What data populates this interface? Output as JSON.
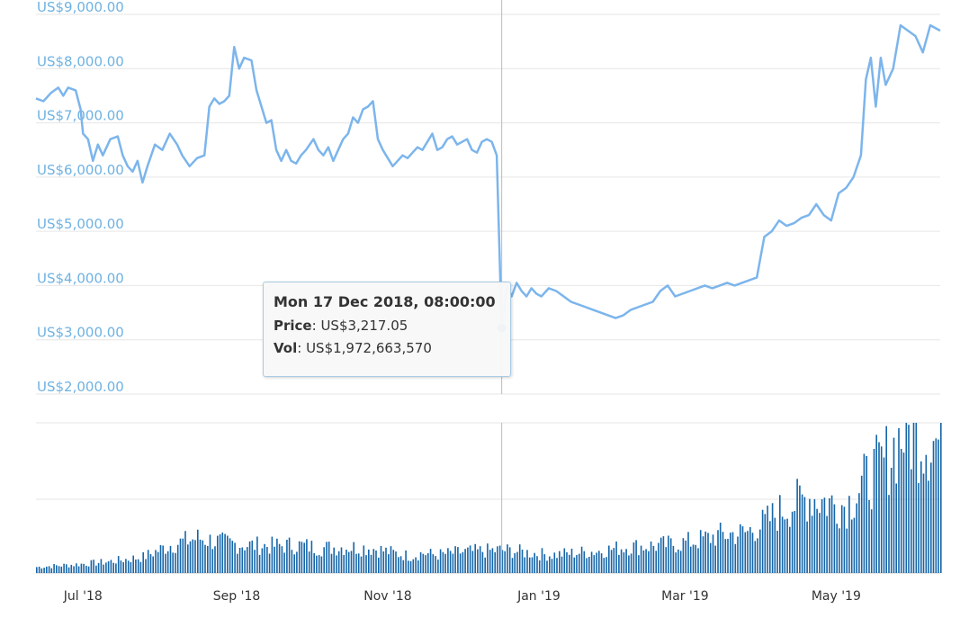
{
  "colors": {
    "line": "#7cb5ec",
    "volume": "#1565a8",
    "axis_label": "#6fb2e2",
    "grid": "#e6e6e6",
    "crosshair": "#bbbbbb"
  },
  "tooltip": {
    "date": "Mon 17 Dec 2018, 08:00:00",
    "price_label": "Price",
    "price_value": "US$3,217.05",
    "vol_label": "Vol",
    "vol_value": "US$1,972,663,570"
  },
  "chart_data": {
    "type": "line",
    "title": "",
    "y_tick_labels": [
      "US$9,000.00",
      "US$8,000.00",
      "US$7,000.00",
      "US$6,000.00",
      "US$5,000.00",
      "US$4,000.00",
      "US$3,000.00",
      "US$2,000.00"
    ],
    "y_ticks": [
      9000,
      8000,
      7000,
      6000,
      5000,
      4000,
      3000,
      2000
    ],
    "ylim": [
      2000,
      9000
    ],
    "x_tick_labels": [
      "Jul '18",
      "Sep '18",
      "Nov '18",
      "Jan '19",
      "Mar '19",
      "May '19"
    ],
    "x_tick_dates": [
      "2018-07-01",
      "2018-09-01",
      "2018-11-01",
      "2019-01-01",
      "2019-03-01",
      "2019-05-01"
    ],
    "xlim": [
      "2018-06-12",
      "2019-06-12"
    ],
    "grid": true,
    "highlight": {
      "date": "2018-12-17",
      "price": 3217.05,
      "volume": 1972663570
    },
    "price_series": {
      "name": "Price",
      "points": [
        [
          "2018-06-12",
          7450
        ],
        [
          "2018-06-15",
          7400
        ],
        [
          "2018-06-18",
          7550
        ],
        [
          "2018-06-21",
          7650
        ],
        [
          "2018-06-23",
          7500
        ],
        [
          "2018-06-25",
          7650
        ],
        [
          "2018-06-28",
          7600
        ],
        [
          "2018-06-30",
          7250
        ],
        [
          "2018-07-01",
          6800
        ],
        [
          "2018-07-03",
          6700
        ],
        [
          "2018-07-05",
          6300
        ],
        [
          "2018-07-07",
          6600
        ],
        [
          "2018-07-09",
          6400
        ],
        [
          "2018-07-12",
          6700
        ],
        [
          "2018-07-15",
          6750
        ],
        [
          "2018-07-17",
          6400
        ],
        [
          "2018-07-19",
          6200
        ],
        [
          "2018-07-21",
          6100
        ],
        [
          "2018-07-23",
          6300
        ],
        [
          "2018-07-25",
          5900
        ],
        [
          "2018-07-27",
          6200
        ],
        [
          "2018-07-30",
          6600
        ],
        [
          "2018-08-02",
          6500
        ],
        [
          "2018-08-05",
          6800
        ],
        [
          "2018-08-08",
          6600
        ],
        [
          "2018-08-10",
          6400
        ],
        [
          "2018-08-13",
          6200
        ],
        [
          "2018-08-16",
          6350
        ],
        [
          "2018-08-19",
          6400
        ],
        [
          "2018-08-21",
          7300
        ],
        [
          "2018-08-23",
          7450
        ],
        [
          "2018-08-25",
          7350
        ],
        [
          "2018-08-27",
          7400
        ],
        [
          "2018-08-29",
          7500
        ],
        [
          "2018-08-31",
          8400
        ],
        [
          "2018-09-02",
          8000
        ],
        [
          "2018-09-04",
          8200
        ],
        [
          "2018-09-07",
          8150
        ],
        [
          "2018-09-09",
          7600
        ],
        [
          "2018-09-11",
          7300
        ],
        [
          "2018-09-13",
          7000
        ],
        [
          "2018-09-15",
          7050
        ],
        [
          "2018-09-17",
          6500
        ],
        [
          "2018-09-19",
          6300
        ],
        [
          "2018-09-21",
          6500
        ],
        [
          "2018-09-23",
          6300
        ],
        [
          "2018-09-25",
          6250
        ],
        [
          "2018-09-27",
          6400
        ],
        [
          "2018-09-29",
          6500
        ],
        [
          "2018-10-02",
          6700
        ],
        [
          "2018-10-04",
          6500
        ],
        [
          "2018-10-06",
          6400
        ],
        [
          "2018-10-08",
          6550
        ],
        [
          "2018-10-10",
          6300
        ],
        [
          "2018-10-12",
          6500
        ],
        [
          "2018-10-14",
          6700
        ],
        [
          "2018-10-16",
          6800
        ],
        [
          "2018-10-18",
          7100
        ],
        [
          "2018-10-20",
          7000
        ],
        [
          "2018-10-22",
          7250
        ],
        [
          "2018-10-24",
          7300
        ],
        [
          "2018-10-26",
          7400
        ],
        [
          "2018-10-28",
          6700
        ],
        [
          "2018-10-30",
          6500
        ],
        [
          "2018-11-01",
          6350
        ],
        [
          "2018-11-03",
          6200
        ],
        [
          "2018-11-05",
          6300
        ],
        [
          "2018-11-07",
          6400
        ],
        [
          "2018-11-09",
          6350
        ],
        [
          "2018-11-11",
          6450
        ],
        [
          "2018-11-13",
          6550
        ],
        [
          "2018-11-15",
          6500
        ],
        [
          "2018-11-17",
          6650
        ],
        [
          "2018-11-19",
          6800
        ],
        [
          "2018-11-21",
          6500
        ],
        [
          "2018-11-23",
          6550
        ],
        [
          "2018-11-25",
          6700
        ],
        [
          "2018-11-27",
          6750
        ],
        [
          "2018-11-29",
          6600
        ],
        [
          "2018-12-01",
          6650
        ],
        [
          "2018-12-03",
          6700
        ],
        [
          "2018-12-05",
          6500
        ],
        [
          "2018-12-07",
          6450
        ],
        [
          "2018-12-09",
          6650
        ],
        [
          "2018-12-11",
          6700
        ],
        [
          "2018-12-13",
          6650
        ],
        [
          "2018-12-15",
          6400
        ],
        [
          "2018-12-17",
          3217.05
        ],
        [
          "2018-12-19",
          4000
        ],
        [
          "2018-12-21",
          3800
        ],
        [
          "2018-12-23",
          4050
        ],
        [
          "2018-12-25",
          3900
        ],
        [
          "2018-12-27",
          3800
        ],
        [
          "2018-12-29",
          3950
        ],
        [
          "2018-12-31",
          3850
        ],
        [
          "2019-01-02",
          3800
        ],
        [
          "2019-01-05",
          3950
        ],
        [
          "2019-01-08",
          3900
        ],
        [
          "2019-01-11",
          3800
        ],
        [
          "2019-01-14",
          3700
        ],
        [
          "2019-01-17",
          3650
        ],
        [
          "2019-01-20",
          3600
        ],
        [
          "2019-01-23",
          3550
        ],
        [
          "2019-01-26",
          3500
        ],
        [
          "2019-01-29",
          3450
        ],
        [
          "2019-02-01",
          3400
        ],
        [
          "2019-02-04",
          3450
        ],
        [
          "2019-02-07",
          3550
        ],
        [
          "2019-02-10",
          3600
        ],
        [
          "2019-02-13",
          3650
        ],
        [
          "2019-02-16",
          3700
        ],
        [
          "2019-02-19",
          3900
        ],
        [
          "2019-02-22",
          4000
        ],
        [
          "2019-02-25",
          3800
        ],
        [
          "2019-02-28",
          3850
        ],
        [
          "2019-03-03",
          3900
        ],
        [
          "2019-03-06",
          3950
        ],
        [
          "2019-03-09",
          4000
        ],
        [
          "2019-03-12",
          3950
        ],
        [
          "2019-03-15",
          4000
        ],
        [
          "2019-03-18",
          4050
        ],
        [
          "2019-03-21",
          4000
        ],
        [
          "2019-03-24",
          4050
        ],
        [
          "2019-03-27",
          4100
        ],
        [
          "2019-03-30",
          4150
        ],
        [
          "2019-04-02",
          4900
        ],
        [
          "2019-04-05",
          5000
        ],
        [
          "2019-04-08",
          5200
        ],
        [
          "2019-04-11",
          5100
        ],
        [
          "2019-04-14",
          5150
        ],
        [
          "2019-04-17",
          5250
        ],
        [
          "2019-04-20",
          5300
        ],
        [
          "2019-04-23",
          5500
        ],
        [
          "2019-04-26",
          5300
        ],
        [
          "2019-04-29",
          5200
        ],
        [
          "2019-05-02",
          5700
        ],
        [
          "2019-05-05",
          5800
        ],
        [
          "2019-05-08",
          6000
        ],
        [
          "2019-05-11",
          6400
        ],
        [
          "2019-05-13",
          7800
        ],
        [
          "2019-05-15",
          8200
        ],
        [
          "2019-05-17",
          7300
        ],
        [
          "2019-05-19",
          8200
        ],
        [
          "2019-05-21",
          7700
        ],
        [
          "2019-05-24",
          8000
        ],
        [
          "2019-05-27",
          8800
        ],
        [
          "2019-05-30",
          8700
        ],
        [
          "2019-06-02",
          8600
        ],
        [
          "2019-06-05",
          8300
        ],
        [
          "2019-06-08",
          8800
        ],
        [
          "2019-06-12",
          8700
        ]
      ]
    },
    "volume_series": {
      "name": "Vol",
      "points": [
        [
          "2018-06-12",
          6
        ],
        [
          "2018-06-25",
          8
        ],
        [
          "2018-07-10",
          11
        ],
        [
          "2018-07-25",
          16
        ],
        [
          "2018-08-05",
          28
        ],
        [
          "2018-08-16",
          35
        ],
        [
          "2018-08-27",
          30
        ],
        [
          "2018-09-05",
          28
        ],
        [
          "2018-09-15",
          27
        ],
        [
          "2018-09-25",
          28
        ],
        [
          "2018-10-05",
          25
        ],
        [
          "2018-10-15",
          26
        ],
        [
          "2018-10-25",
          25
        ],
        [
          "2018-11-05",
          19
        ],
        [
          "2018-11-10",
          17
        ],
        [
          "2018-11-15",
          20
        ],
        [
          "2018-11-20",
          18
        ],
        [
          "2018-12-01",
          21
        ],
        [
          "2018-12-10",
          22
        ],
        [
          "2018-12-17",
          23
        ],
        [
          "2018-12-25",
          21
        ],
        [
          "2019-01-05",
          18
        ],
        [
          "2019-01-15",
          20
        ],
        [
          "2019-01-25",
          22
        ],
        [
          "2019-02-05",
          26
        ],
        [
          "2019-02-15",
          27
        ],
        [
          "2019-02-25",
          29
        ],
        [
          "2019-03-05",
          32
        ],
        [
          "2019-03-15",
          38
        ],
        [
          "2019-03-25",
          40
        ],
        [
          "2019-04-02",
          50
        ],
        [
          "2019-04-10",
          65
        ],
        [
          "2019-04-20",
          76
        ],
        [
          "2019-04-30",
          69
        ],
        [
          "2019-05-05",
          68
        ],
        [
          "2019-05-12",
          90
        ],
        [
          "2019-05-20",
          110
        ],
        [
          "2019-05-28",
          140
        ],
        [
          "2019-06-05",
          135
        ],
        [
          "2019-06-12",
          130
        ]
      ]
    }
  }
}
